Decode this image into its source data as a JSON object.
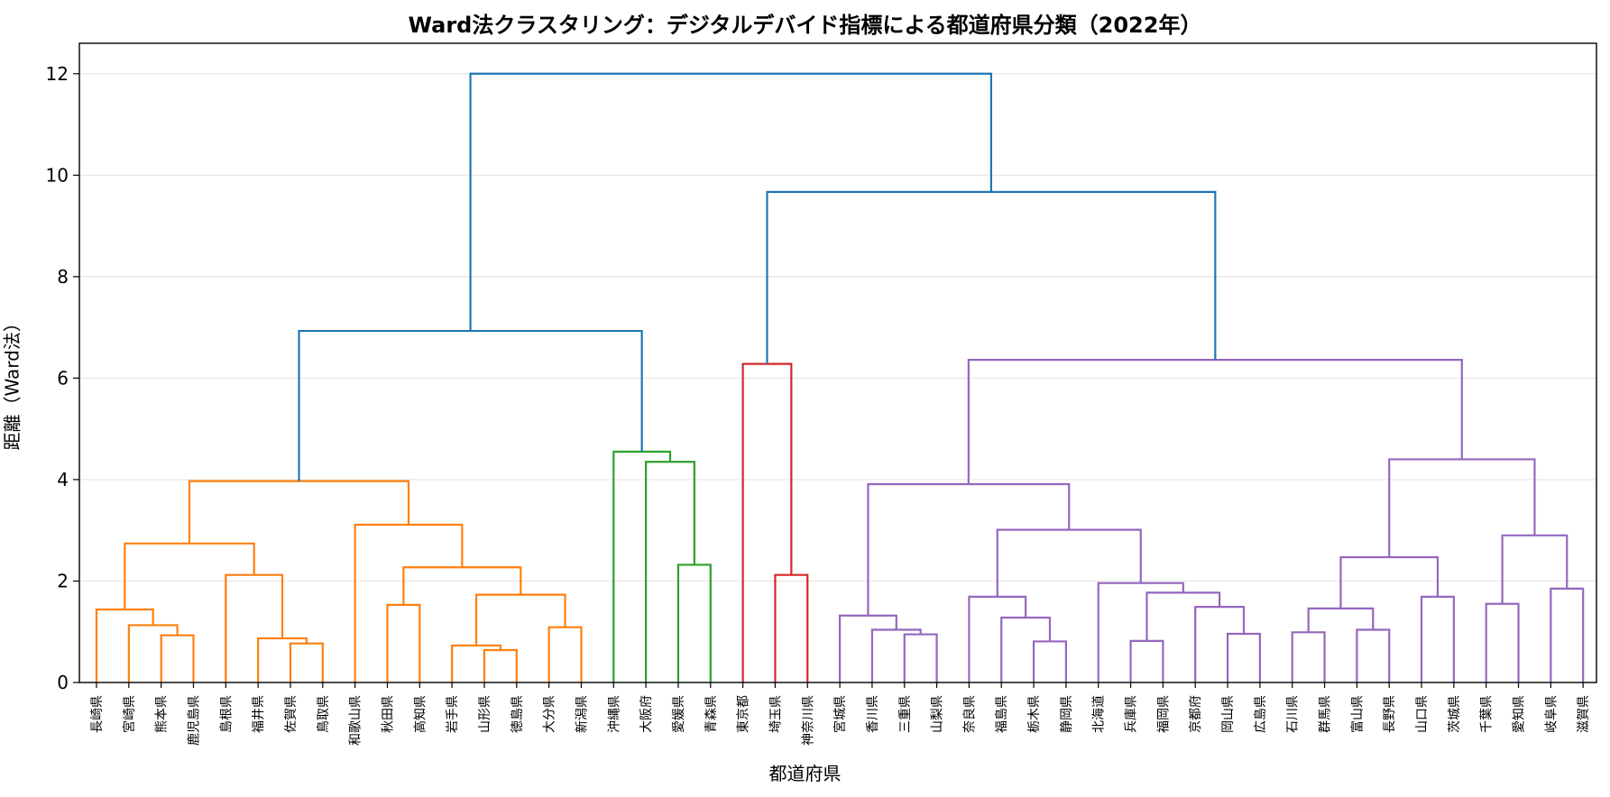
{
  "chart_data": {
    "type": "dendrogram",
    "title": "Ward法クラスタリング：デジタルデバイド指標による都道府県分類（2022年）",
    "xlabel": "都道府県",
    "ylabel": "距離（Ward法）",
    "ylim": [
      0,
      12.6
    ],
    "yticks": [
      0,
      2,
      4,
      6,
      8,
      10,
      12
    ],
    "grid": "horizontal",
    "leaves": [
      "長崎県",
      "宮崎県",
      "熊本県",
      "鹿児島県",
      "島根県",
      "福井県",
      "佐賀県",
      "鳥取県",
      "和歌山県",
      "秋田県",
      "高知県",
      "岩手県",
      "山形県",
      "徳島県",
      "大分県",
      "新潟県",
      "沖縄県",
      "大阪府",
      "愛媛県",
      "青森県",
      "東京都",
      "埼玉県",
      "神奈川県",
      "宮城県",
      "香川県",
      "三重県",
      "山梨県",
      "奈良県",
      "福島県",
      "栃木県",
      "静岡県",
      "北海道",
      "兵庫県",
      "福岡県",
      "京都府",
      "岡山県",
      "広島県",
      "石川県",
      "群馬県",
      "富山県",
      "長野県",
      "山口県",
      "茨城県",
      "千葉県",
      "愛知県",
      "岐阜県",
      "滋賀県"
    ],
    "colors": {
      "orange": "#ff7f0e",
      "green": "#2ca02c",
      "red": "#d62728",
      "purple": "#9467bd",
      "blue": "#1f77b4"
    },
    "merges": [
      {
        "left": "L2",
        "right": "L3",
        "height": 0.93,
        "color": "orange"
      },
      {
        "left": "L1",
        "right": "M0",
        "height": 1.13,
        "color": "orange"
      },
      {
        "left": "L0",
        "right": "M1",
        "height": 1.44,
        "color": "orange"
      },
      {
        "left": "L6",
        "right": "L7",
        "height": 0.77,
        "color": "orange"
      },
      {
        "left": "L5",
        "right": "M3",
        "height": 0.87,
        "color": "orange"
      },
      {
        "left": "L4",
        "right": "M4",
        "height": 2.12,
        "color": "orange"
      },
      {
        "left": "M2",
        "right": "M5",
        "height": 2.74,
        "color": "orange"
      },
      {
        "left": "L12",
        "right": "L13",
        "height": 0.64,
        "color": "orange"
      },
      {
        "left": "L11",
        "right": "M7",
        "height": 0.73,
        "color": "orange"
      },
      {
        "left": "L14",
        "right": "L15",
        "height": 1.09,
        "color": "orange"
      },
      {
        "left": "M8",
        "right": "M9",
        "height": 1.73,
        "color": "orange"
      },
      {
        "left": "L9",
        "right": "L10",
        "height": 1.53,
        "color": "orange"
      },
      {
        "left": "M11",
        "right": "M10",
        "height": 2.27,
        "color": "orange"
      },
      {
        "left": "L8",
        "right": "M12",
        "height": 3.11,
        "color": "orange"
      },
      {
        "left": "M6",
        "right": "M13",
        "height": 3.97,
        "color": "orange"
      },
      {
        "left": "L18",
        "right": "L19",
        "height": 2.32,
        "color": "green"
      },
      {
        "left": "L17",
        "right": "M15",
        "height": 4.35,
        "color": "green"
      },
      {
        "left": "L16",
        "right": "M16",
        "height": 4.55,
        "color": "green"
      },
      {
        "left": "M14",
        "right": "M17",
        "height": 6.93,
        "color": "blue"
      },
      {
        "left": "L21",
        "right": "L22",
        "height": 2.12,
        "color": "red"
      },
      {
        "left": "L20",
        "right": "M19",
        "height": 6.28,
        "color": "red"
      },
      {
        "left": "L25",
        "right": "L26",
        "height": 0.95,
        "color": "purple"
      },
      {
        "left": "L24",
        "right": "M21",
        "height": 1.04,
        "color": "purple"
      },
      {
        "left": "L23",
        "right": "M22",
        "height": 1.32,
        "color": "purple"
      },
      {
        "left": "L29",
        "right": "L30",
        "height": 0.81,
        "color": "purple"
      },
      {
        "left": "L28",
        "right": "M24",
        "height": 1.28,
        "color": "purple"
      },
      {
        "left": "L27",
        "right": "M25",
        "height": 1.69,
        "color": "purple"
      },
      {
        "left": "L32",
        "right": "L33",
        "height": 0.82,
        "color": "purple"
      },
      {
        "left": "L35",
        "right": "L36",
        "height": 0.96,
        "color": "purple"
      },
      {
        "left": "L34",
        "right": "M28",
        "height": 1.49,
        "color": "purple"
      },
      {
        "left": "M27",
        "right": "M29",
        "height": 1.77,
        "color": "purple"
      },
      {
        "left": "L31",
        "right": "M30",
        "height": 1.96,
        "color": "purple"
      },
      {
        "left": "M26",
        "right": "M31",
        "height": 3.01,
        "color": "purple"
      },
      {
        "left": "M23",
        "right": "M32",
        "height": 3.91,
        "color": "purple"
      },
      {
        "left": "L39",
        "right": "L40",
        "height": 1.04,
        "color": "purple"
      },
      {
        "left": "L37",
        "right": "L38",
        "height": 0.99,
        "color": "purple"
      },
      {
        "left": "M35",
        "right": "M34",
        "height": 1.46,
        "color": "purple"
      },
      {
        "left": "L41",
        "right": "L42",
        "height": 1.69,
        "color": "purple"
      },
      {
        "left": "M36",
        "right": "M37",
        "height": 2.47,
        "color": "purple"
      },
      {
        "left": "L43",
        "right": "L44",
        "height": 1.55,
        "color": "purple"
      },
      {
        "left": "L45",
        "right": "L46",
        "height": 1.85,
        "color": "purple"
      },
      {
        "left": "M39",
        "right": "M40",
        "height": 2.9,
        "color": "purple"
      },
      {
        "left": "M38",
        "right": "M41",
        "height": 4.4,
        "color": "purple"
      },
      {
        "left": "M33",
        "right": "M42",
        "height": 6.36,
        "color": "purple"
      },
      {
        "left": "M20",
        "right": "M43",
        "height": 9.67,
        "color": "blue"
      },
      {
        "left": "M18",
        "right": "M44",
        "height": 12.0,
        "color": "blue"
      }
    ]
  }
}
